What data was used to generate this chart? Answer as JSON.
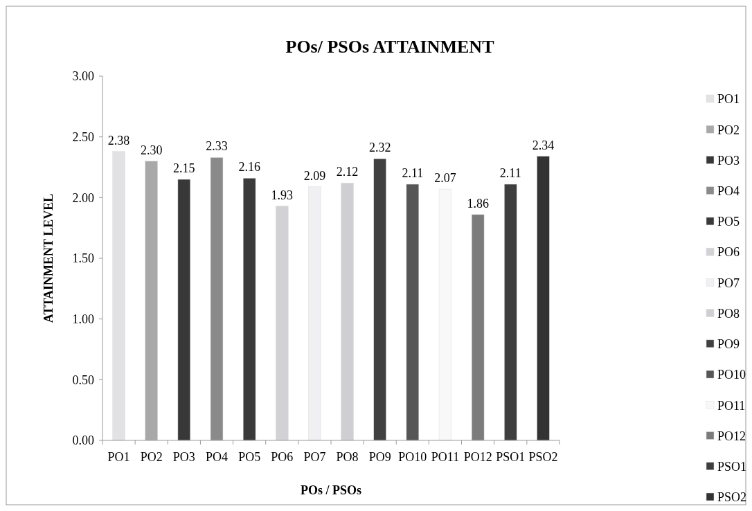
{
  "chart_data": {
    "type": "bar",
    "title": "POs/ PSOs ATTAINMENT",
    "xlabel": "POs / PSOs",
    "ylabel": "ATTAINMENT LEVEL",
    "categories": [
      "PO1",
      "PO2",
      "PO3",
      "PO4",
      "PO5",
      "PO6",
      "PO7",
      "PO8",
      "PO9",
      "PO10",
      "PO11",
      "PO12",
      "PSO1",
      "PSO2"
    ],
    "series": [
      {
        "name": "PO1",
        "color": "#e2e2e4",
        "values": [
          2.38,
          null,
          null,
          null,
          null,
          null,
          null,
          null,
          null,
          null,
          null,
          null,
          null,
          null
        ],
        "value_labels": [
          "2.38",
          null,
          null,
          null,
          null,
          null,
          null,
          null,
          null,
          null,
          null,
          null,
          null,
          null
        ]
      },
      {
        "name": "PO2",
        "color": "#a8a8a8",
        "values": [
          null,
          2.3,
          null,
          null,
          null,
          null,
          null,
          null,
          null,
          null,
          null,
          null,
          null,
          null
        ],
        "value_labels": [
          null,
          "2.30",
          null,
          null,
          null,
          null,
          null,
          null,
          null,
          null,
          null,
          null,
          null,
          null
        ]
      },
      {
        "name": "PO3",
        "color": "#383838",
        "values": [
          null,
          null,
          2.15,
          null,
          null,
          null,
          null,
          null,
          null,
          null,
          null,
          null,
          null,
          null
        ],
        "value_labels": [
          null,
          null,
          "2.15",
          null,
          null,
          null,
          null,
          null,
          null,
          null,
          null,
          null,
          null,
          null
        ]
      },
      {
        "name": "PO4",
        "color": "#8a8a8a",
        "values": [
          null,
          null,
          null,
          2.33,
          null,
          null,
          null,
          null,
          null,
          null,
          null,
          null,
          null,
          null
        ],
        "value_labels": [
          null,
          null,
          null,
          "2.33",
          null,
          null,
          null,
          null,
          null,
          null,
          null,
          null,
          null,
          null
        ]
      },
      {
        "name": "PO5",
        "color": "#3a3a3a",
        "values": [
          null,
          null,
          null,
          null,
          2.16,
          null,
          null,
          null,
          null,
          null,
          null,
          null,
          null,
          null
        ],
        "value_labels": [
          null,
          null,
          null,
          null,
          "2.16",
          null,
          null,
          null,
          null,
          null,
          null,
          null,
          null,
          null
        ]
      },
      {
        "name": "PO6",
        "color": "#d2d2d6",
        "values": [
          null,
          null,
          null,
          null,
          null,
          1.93,
          null,
          null,
          null,
          null,
          null,
          null,
          null,
          null
        ],
        "value_labels": [
          null,
          null,
          null,
          null,
          null,
          "1.93",
          null,
          null,
          null,
          null,
          null,
          null,
          null,
          null
        ]
      },
      {
        "name": "PO7",
        "color": "#f0f0f2",
        "values": [
          null,
          null,
          null,
          null,
          null,
          null,
          2.09,
          null,
          null,
          null,
          null,
          null,
          null,
          null
        ],
        "value_labels": [
          null,
          null,
          null,
          null,
          null,
          null,
          "2.09",
          null,
          null,
          null,
          null,
          null,
          null,
          null
        ]
      },
      {
        "name": "PO8",
        "color": "#cfcfd3",
        "values": [
          null,
          null,
          null,
          null,
          null,
          null,
          null,
          2.12,
          null,
          null,
          null,
          null,
          null,
          null
        ],
        "value_labels": [
          null,
          null,
          null,
          null,
          null,
          null,
          null,
          "2.12",
          null,
          null,
          null,
          null,
          null,
          null
        ]
      },
      {
        "name": "PO9",
        "color": "#404040",
        "values": [
          null,
          null,
          null,
          null,
          null,
          null,
          null,
          null,
          2.32,
          null,
          null,
          null,
          null,
          null
        ],
        "value_labels": [
          null,
          null,
          null,
          null,
          null,
          null,
          null,
          null,
          "2.32",
          null,
          null,
          null,
          null,
          null
        ]
      },
      {
        "name": "PO10",
        "color": "#565656",
        "values": [
          null,
          null,
          null,
          null,
          null,
          null,
          null,
          null,
          null,
          2.11,
          null,
          null,
          null,
          null
        ],
        "value_labels": [
          null,
          null,
          null,
          null,
          null,
          null,
          null,
          null,
          null,
          "2.11",
          null,
          null,
          null,
          null
        ]
      },
      {
        "name": "PO11",
        "color": "#f8f8f8",
        "values": [
          null,
          null,
          null,
          null,
          null,
          null,
          null,
          null,
          null,
          null,
          2.07,
          null,
          null,
          null
        ],
        "value_labels": [
          null,
          null,
          null,
          null,
          null,
          null,
          null,
          null,
          null,
          null,
          "2.07",
          null,
          null,
          null
        ]
      },
      {
        "name": "PO12",
        "color": "#7c7c7c",
        "values": [
          null,
          null,
          null,
          null,
          null,
          null,
          null,
          null,
          null,
          null,
          null,
          1.86,
          null,
          null
        ],
        "value_labels": [
          null,
          null,
          null,
          null,
          null,
          null,
          null,
          null,
          null,
          null,
          null,
          "1.86",
          null,
          null
        ]
      },
      {
        "name": "PSO1",
        "color": "#3e3e3e",
        "values": [
          null,
          null,
          null,
          null,
          null,
          null,
          null,
          null,
          null,
          null,
          null,
          null,
          2.11,
          null
        ],
        "value_labels": [
          null,
          null,
          null,
          null,
          null,
          null,
          null,
          null,
          null,
          null,
          null,
          null,
          "2.11",
          null
        ]
      },
      {
        "name": "PSO2",
        "color": "#333333",
        "values": [
          null,
          null,
          null,
          null,
          null,
          null,
          null,
          null,
          null,
          null,
          null,
          null,
          null,
          2.34
        ],
        "value_labels": [
          null,
          null,
          null,
          null,
          null,
          null,
          null,
          null,
          null,
          null,
          null,
          null,
          null,
          "2.34"
        ]
      }
    ],
    "ylim": [
      0,
      3
    ],
    "yticks": [
      {
        "value": 0,
        "label": "0.00"
      },
      {
        "value": 0.5,
        "label": "0.50"
      },
      {
        "value": 1,
        "label": "1.00"
      },
      {
        "value": 1.5,
        "label": "1.50"
      },
      {
        "value": 2,
        "label": "2.00"
      },
      {
        "value": 2.5,
        "label": "2.50"
      },
      {
        "value": 3,
        "label": "3.00"
      }
    ],
    "legend": "right"
  }
}
